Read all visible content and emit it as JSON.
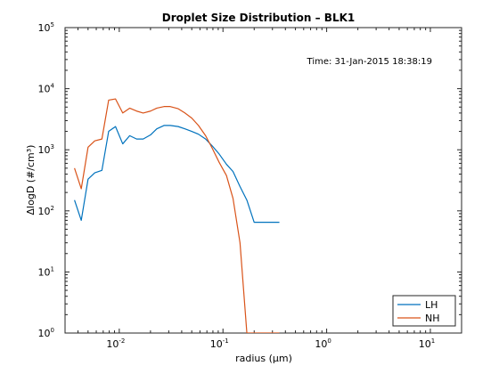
{
  "chart_data": {
    "type": "line",
    "title": "Droplet Size Distribution – BLK1",
    "xlabel": "radius (μm)",
    "ylabel": "ΔlogD (#/cm³)",
    "annotation": "Time: 31-Jan-2015 18:38:19",
    "x_scale": "log",
    "y_scale": "log",
    "xlim": [
      0.003,
      20
    ],
    "ylim": [
      1,
      100000
    ],
    "grid": false,
    "legend_position": "bottom-right",
    "x_ticks": [
      {
        "base": "10",
        "exp": "-2",
        "value": 0.01
      },
      {
        "base": "10",
        "exp": "-1",
        "value": 0.1
      },
      {
        "base": "10",
        "exp": "0",
        "value": 1
      },
      {
        "base": "10",
        "exp": "1",
        "value": 10
      }
    ],
    "y_ticks": [
      {
        "base": "10",
        "exp": "0",
        "value": 1
      },
      {
        "base": "10",
        "exp": "1",
        "value": 10
      },
      {
        "base": "10",
        "exp": "2",
        "value": 100
      },
      {
        "base": "10",
        "exp": "3",
        "value": 1000
      },
      {
        "base": "10",
        "exp": "4",
        "value": 10000
      },
      {
        "base": "10",
        "exp": "5",
        "value": 100000
      }
    ],
    "series": [
      {
        "name": "LH",
        "color": "#0072bd",
        "x": [
          0.0037,
          0.0043,
          0.005,
          0.0058,
          0.0068,
          0.0079,
          0.0092,
          0.0108,
          0.0126,
          0.0147,
          0.017,
          0.02,
          0.023,
          0.027,
          0.031,
          0.037,
          0.043,
          0.05,
          0.058,
          0.068,
          0.079,
          0.092,
          0.108,
          0.125,
          0.146,
          0.17,
          0.2,
          0.23,
          0.27,
          0.31,
          0.35
        ],
        "y": [
          150,
          70,
          330,
          420,
          460,
          2000,
          2400,
          1250,
          1700,
          1500,
          1500,
          1750,
          2200,
          2500,
          2500,
          2400,
          2200,
          2000,
          1800,
          1500,
          1150,
          850,
          580,
          440,
          250,
          150,
          65,
          65,
          65,
          65,
          65
        ]
      },
      {
        "name": "NH",
        "color": "#d95319",
        "x": [
          0.0037,
          0.0043,
          0.005,
          0.0058,
          0.0068,
          0.0079,
          0.0092,
          0.0108,
          0.0126,
          0.0147,
          0.017,
          0.02,
          0.023,
          0.027,
          0.031,
          0.037,
          0.043,
          0.05,
          0.058,
          0.068,
          0.079,
          0.092,
          0.108,
          0.125,
          0.146,
          0.17,
          0.2,
          0.23,
          0.27,
          0.31,
          0.35
        ],
        "y": [
          500,
          230,
          1100,
          1400,
          1500,
          6500,
          6800,
          4000,
          4800,
          4300,
          4000,
          4300,
          4800,
          5100,
          5100,
          4700,
          4000,
          3300,
          2500,
          1700,
          1050,
          620,
          380,
          160,
          30,
          1,
          1,
          1,
          1,
          1,
          1
        ]
      }
    ]
  }
}
